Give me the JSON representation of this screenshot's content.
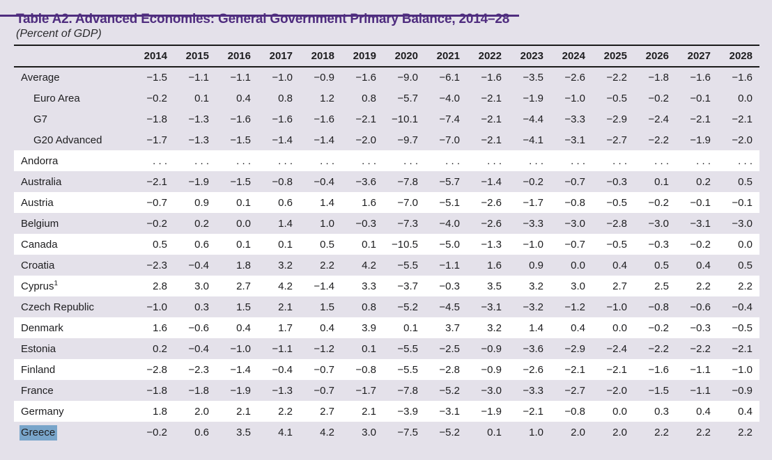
{
  "header": {
    "title": "Table A2. Advanced Economies: General Government Primary Balance, 2014–28",
    "subtitle": "(Percent of GDP)"
  },
  "colors": {
    "page_background": "#e4e1ea",
    "row_stripe": "#ffffff",
    "accent_purple": "#4f2d7f",
    "rule_black": "#1a1a1a",
    "text": "#1d1d1f",
    "selection_blue": "#79a5ca"
  },
  "table": {
    "years": [
      "2014",
      "2015",
      "2016",
      "2017",
      "2018",
      "2019",
      "2020",
      "2021",
      "2022",
      "2023",
      "2024",
      "2025",
      "2026",
      "2027",
      "2028"
    ],
    "rows": [
      {
        "label": "Average",
        "indent": false,
        "selected": false,
        "values": [
          "−1.5",
          "−1.1",
          "−1.1",
          "−1.0",
          "−0.9",
          "−1.6",
          "−9.0",
          "−6.1",
          "−1.6",
          "−3.5",
          "−2.6",
          "−2.2",
          "−1.8",
          "−1.6",
          "−1.6"
        ]
      },
      {
        "label": "Euro Area",
        "indent": true,
        "selected": false,
        "values": [
          "−0.2",
          "0.1",
          "0.4",
          "0.8",
          "1.2",
          "0.8",
          "−5.7",
          "−4.0",
          "−2.1",
          "−1.9",
          "−1.0",
          "−0.5",
          "−0.2",
          "−0.1",
          "0.0"
        ]
      },
      {
        "label": "G7",
        "indent": true,
        "selected": false,
        "values": [
          "−1.8",
          "−1.3",
          "−1.6",
          "−1.6",
          "−1.6",
          "−2.1",
          "−10.1",
          "−7.4",
          "−2.1",
          "−4.4",
          "−3.3",
          "−2.9",
          "−2.4",
          "−2.1",
          "−2.1"
        ]
      },
      {
        "label": "G20 Advanced",
        "indent": true,
        "selected": false,
        "values": [
          "−1.7",
          "−1.3",
          "−1.5",
          "−1.4",
          "−1.4",
          "−2.0",
          "−9.7",
          "−7.0",
          "−2.1",
          "−4.1",
          "−3.1",
          "−2.7",
          "−2.2",
          "−1.9",
          "−2.0"
        ]
      },
      {
        "label": "Andorra",
        "indent": false,
        "selected": false,
        "values": [
          ". . .",
          ". . .",
          ". . .",
          ". . .",
          ". . .",
          ". . .",
          ". . .",
          ". . .",
          ". . .",
          ". . .",
          ". . .",
          ". . .",
          ". . .",
          ". . .",
          ". . ."
        ]
      },
      {
        "label": "Australia",
        "indent": false,
        "selected": false,
        "values": [
          "−2.1",
          "−1.9",
          "−1.5",
          "−0.8",
          "−0.4",
          "−3.6",
          "−7.8",
          "−5.7",
          "−1.4",
          "−0.2",
          "−0.7",
          "−0.3",
          "0.1",
          "0.2",
          "0.5"
        ]
      },
      {
        "label": "Austria",
        "indent": false,
        "selected": false,
        "values": [
          "−0.7",
          "0.9",
          "0.1",
          "0.6",
          "1.4",
          "1.6",
          "−7.0",
          "−5.1",
          "−2.6",
          "−1.7",
          "−0.8",
          "−0.5",
          "−0.2",
          "−0.1",
          "−0.1"
        ]
      },
      {
        "label": "Belgium",
        "indent": false,
        "selected": false,
        "values": [
          "−0.2",
          "0.2",
          "0.0",
          "1.4",
          "1.0",
          "−0.3",
          "−7.3",
          "−4.0",
          "−2.6",
          "−3.3",
          "−3.0",
          "−2.8",
          "−3.0",
          "−3.1",
          "−3.0"
        ]
      },
      {
        "label": "Canada",
        "indent": false,
        "selected": false,
        "values": [
          "0.5",
          "0.6",
          "0.1",
          "0.1",
          "0.5",
          "0.1",
          "−10.5",
          "−5.0",
          "−1.3",
          "−1.0",
          "−0.7",
          "−0.5",
          "−0.3",
          "−0.2",
          "0.0"
        ]
      },
      {
        "label": "Croatia",
        "indent": false,
        "selected": false,
        "values": [
          "−2.3",
          "−0.4",
          "1.8",
          "3.2",
          "2.2",
          "4.2",
          "−5.5",
          "−1.1",
          "1.6",
          "0.9",
          "0.0",
          "0.4",
          "0.5",
          "0.4",
          "0.5"
        ]
      },
      {
        "label": "Cyprus",
        "sup": "1",
        "indent": false,
        "selected": false,
        "values": [
          "2.8",
          "3.0",
          "2.7",
          "4.2",
          "−1.4",
          "3.3",
          "−3.7",
          "−0.3",
          "3.5",
          "3.2",
          "3.0",
          "2.7",
          "2.5",
          "2.2",
          "2.2"
        ]
      },
      {
        "label": "Czech Republic",
        "indent": false,
        "selected": false,
        "values": [
          "−1.0",
          "0.3",
          "1.5",
          "2.1",
          "1.5",
          "0.8",
          "−5.2",
          "−4.5",
          "−3.1",
          "−3.2",
          "−1.2",
          "−1.0",
          "−0.8",
          "−0.6",
          "−0.4"
        ]
      },
      {
        "label": "Denmark",
        "indent": false,
        "selected": false,
        "values": [
          "1.6",
          "−0.6",
          "0.4",
          "1.7",
          "0.4",
          "3.9",
          "0.1",
          "3.7",
          "3.2",
          "1.4",
          "0.4",
          "0.0",
          "−0.2",
          "−0.3",
          "−0.5"
        ]
      },
      {
        "label": "Estonia",
        "indent": false,
        "selected": false,
        "values": [
          "0.2",
          "−0.4",
          "−1.0",
          "−1.1",
          "−1.2",
          "0.1",
          "−5.5",
          "−2.5",
          "−0.9",
          "−3.6",
          "−2.9",
          "−2.4",
          "−2.2",
          "−2.2",
          "−2.1"
        ]
      },
      {
        "label": "Finland",
        "indent": false,
        "selected": false,
        "values": [
          "−2.8",
          "−2.3",
          "−1.4",
          "−0.4",
          "−0.7",
          "−0.8",
          "−5.5",
          "−2.8",
          "−0.9",
          "−2.6",
          "−2.1",
          "−2.1",
          "−1.6",
          "−1.1",
          "−1.0"
        ]
      },
      {
        "label": "France",
        "indent": false,
        "selected": false,
        "values": [
          "−1.8",
          "−1.8",
          "−1.9",
          "−1.3",
          "−0.7",
          "−1.7",
          "−7.8",
          "−5.2",
          "−3.0",
          "−3.3",
          "−2.7",
          "−2.0",
          "−1.5",
          "−1.1",
          "−0.9"
        ]
      },
      {
        "label": "Germany",
        "indent": false,
        "selected": false,
        "values": [
          "1.8",
          "2.0",
          "2.1",
          "2.2",
          "2.7",
          "2.1",
          "−3.9",
          "−3.1",
          "−1.9",
          "−2.1",
          "−0.8",
          "0.0",
          "0.3",
          "0.4",
          "0.4"
        ]
      },
      {
        "label": "Greece",
        "indent": false,
        "selected": true,
        "values": [
          "−0.2",
          "0.6",
          "3.5",
          "4.1",
          "4.2",
          "3.0",
          "−7.5",
          "−5.2",
          "0.1",
          "1.0",
          "2.0",
          "2.0",
          "2.2",
          "2.2",
          "2.2"
        ]
      }
    ]
  }
}
